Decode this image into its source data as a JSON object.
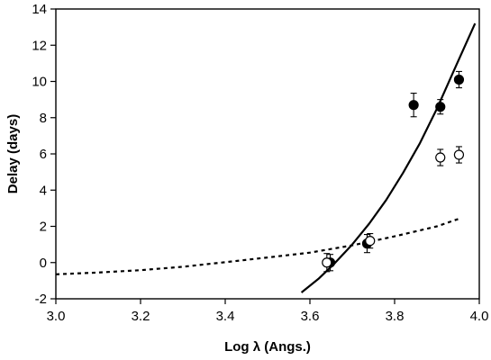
{
  "chart_data": {
    "type": "scatter",
    "title": "",
    "xlabel": "Log λ  (Angs.)",
    "ylabel": "Delay (days)",
    "xlim": [
      3.0,
      4.0
    ],
    "ylim": [
      -2,
      14
    ],
    "x_ticks": [
      3.0,
      3.2,
      3.4,
      3.6,
      3.8,
      4.0
    ],
    "x_tick_labels": [
      "3.0",
      "3.2",
      "3.4",
      "3.6",
      "3.8",
      "4.0"
    ],
    "y_ticks": [
      -2,
      0,
      2,
      4,
      6,
      8,
      10,
      12,
      14
    ],
    "y_tick_labels": [
      "-2",
      "0",
      "2",
      "4",
      "6",
      "8",
      "10",
      "12",
      "14"
    ],
    "grid": false,
    "legend": "none",
    "series": [
      {
        "marker": "filled-circle",
        "color": "#000000",
        "points": [
          {
            "x": 3.648,
            "y": 0.0,
            "err": 0.45
          },
          {
            "x": 3.735,
            "y": 1.05,
            "err": 0.5
          },
          {
            "x": 3.845,
            "y": 8.7,
            "err": 0.65
          },
          {
            "x": 3.908,
            "y": 8.6,
            "err": 0.4
          },
          {
            "x": 3.952,
            "y": 10.1,
            "err": 0.45
          }
        ]
      },
      {
        "marker": "open-circle",
        "color": "#000000",
        "points": [
          {
            "x": 3.64,
            "y": 0.0,
            "err": 0.5
          },
          {
            "x": 3.742,
            "y": 1.2,
            "err": 0.4
          },
          {
            "x": 3.908,
            "y": 5.8,
            "err": 0.45
          },
          {
            "x": 3.952,
            "y": 5.95,
            "err": 0.45
          }
        ]
      }
    ],
    "curves": [
      {
        "style": "solid",
        "color": "#000000",
        "points": [
          [
            3.58,
            -1.65
          ],
          [
            3.62,
            -0.9
          ],
          [
            3.66,
            0.0
          ],
          [
            3.7,
            1.0
          ],
          [
            3.74,
            2.15
          ],
          [
            3.78,
            3.45
          ],
          [
            3.82,
            4.95
          ],
          [
            3.86,
            6.6
          ],
          [
            3.9,
            8.5
          ],
          [
            3.94,
            10.6
          ],
          [
            3.99,
            13.2
          ]
        ]
      },
      {
        "style": "dotted",
        "color": "#000000",
        "points": [
          [
            3.0,
            -0.65
          ],
          [
            3.1,
            -0.55
          ],
          [
            3.2,
            -0.42
          ],
          [
            3.3,
            -0.23
          ],
          [
            3.4,
            0.02
          ],
          [
            3.5,
            0.28
          ],
          [
            3.6,
            0.55
          ],
          [
            3.7,
            0.95
          ],
          [
            3.8,
            1.45
          ],
          [
            3.9,
            2.0
          ],
          [
            3.95,
            2.4
          ]
        ]
      }
    ]
  }
}
